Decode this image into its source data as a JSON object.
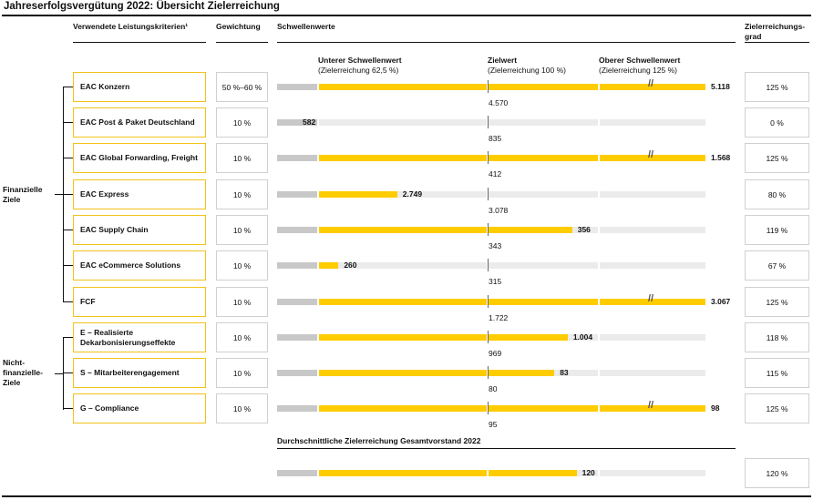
{
  "title": "Jahreserfolgsvergütung 2022: Übersicht Zielerreichung",
  "headers": {
    "criteria": "Verwendete Leistungskriterien¹",
    "weighting": "Gewichtung",
    "thresholds": "Schwellenwerte",
    "achievement": "Zielerreichungs-grad"
  },
  "threshold_labels": {
    "lower": "Unterer Schwellenwert",
    "lower_sub": "(Zielerreichung 62,5 %)",
    "target": "Zielwert",
    "target_sub": "(Zielerreichung 100 %)",
    "upper": "Oberer Schwellenwert",
    "upper_sub": "(Zielerreichung 125 %)"
  },
  "categories": {
    "financial": "Finanzielle Ziele",
    "nonfinancial": "Nicht-finanzielle-Ziele"
  },
  "average": {
    "label": "Durchschnittliche Zielerreichung Gesamtvorstand 2022",
    "value": "120",
    "achievement": "120 %",
    "pct": 120
  },
  "colors": {
    "yellow": "#ffcc00",
    "border_yellow": "#f2c21b",
    "grey": "#c8c8c8",
    "light_grey": "#ebebeb"
  },
  "chart_data": {
    "type": "bar",
    "title": "Jahreserfolgsvergütung 2022: Übersicht Zielerreichung",
    "scale": "Zielerreichung in % (unterer Schwellenwert 62,5 %, Zielwert 100 %, oberer Schwellenwert 125 %)",
    "rows": [
      {
        "criterion": "EAC Konzern",
        "weight": "50 %–60 %",
        "actual": "5.118",
        "target": "4.570",
        "achievement": "125 %",
        "pct": 125
      },
      {
        "criterion": "EAC Post & Paket Deutschland",
        "weight": "10 %",
        "actual": "582",
        "target": "835",
        "achievement": "0 %",
        "pct": 0
      },
      {
        "criterion": "EAC Global Forwarding, Freight",
        "weight": "10 %",
        "actual": "1.568",
        "target": "412",
        "achievement": "125 %",
        "pct": 125
      },
      {
        "criterion": "EAC Express",
        "weight": "10 %",
        "actual": "2.749",
        "target": "3.078",
        "achievement": "80 %",
        "pct": 80
      },
      {
        "criterion": "EAC Supply Chain",
        "weight": "10 %",
        "actual": "356",
        "target": "343",
        "achievement": "119 %",
        "pct": 119
      },
      {
        "criterion": "EAC eCommerce Solutions",
        "weight": "10 %",
        "actual": "260",
        "target": "315",
        "achievement": "67 %",
        "pct": 67
      },
      {
        "criterion": "FCF",
        "weight": "10 %",
        "actual": "3.067",
        "target": "1.722",
        "achievement": "125 %",
        "pct": 125
      },
      {
        "criterion": "E – Realisierte Dekarbonisierungseffekte",
        "weight": "10 %",
        "actual": "1.004",
        "target": "969",
        "achievement": "118 %",
        "pct": 118
      },
      {
        "criterion": "S – Mitarbeiterengagement",
        "weight": "10 %",
        "actual": "83",
        "target": "80",
        "achievement": "115 %",
        "pct": 115
      },
      {
        "criterion": "G – Compliance",
        "weight": "10 %",
        "actual": "98",
        "target": "95",
        "achievement": "125 %",
        "pct": 125
      }
    ]
  }
}
